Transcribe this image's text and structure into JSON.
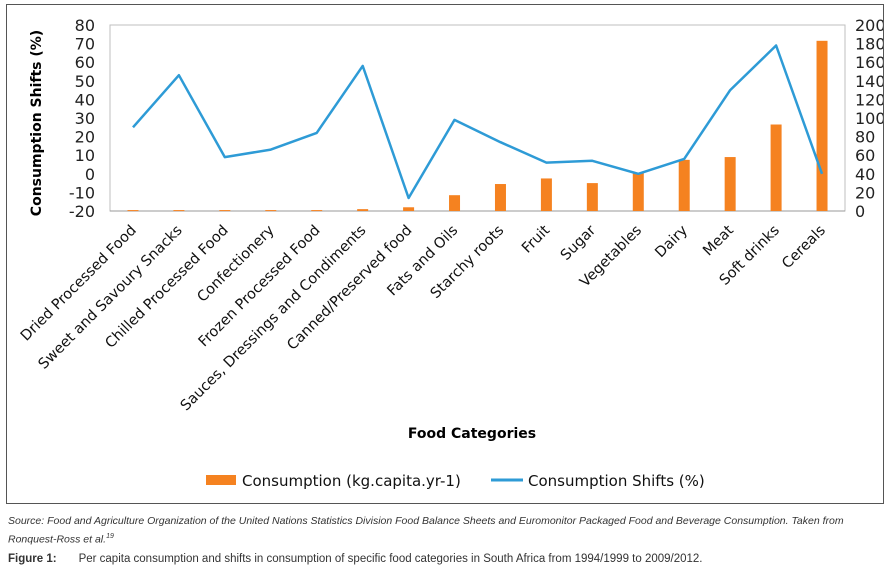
{
  "chart_data": {
    "type": "bar+line",
    "xlabel": "Food Categories",
    "ylabel_left": "Consumption Shifts (%)",
    "ylim_left": [
      -20,
      80
    ],
    "yticks_left": [
      "80",
      "70",
      "60",
      "50",
      "40",
      "30",
      "20",
      "10",
      "0",
      "-10",
      "-20"
    ],
    "ylim_right": [
      0,
      200
    ],
    "yticks_right": [
      "200",
      "180",
      "160",
      "140",
      "120",
      "100",
      "80",
      "60",
      "40",
      "20",
      "0"
    ],
    "categories": [
      "Dried Processed Food",
      "Sweet and Savoury Snacks",
      "Chilled Processed Food",
      "Confectionery",
      "Frozen Processed Food",
      "Sauces, Dressings and Condiments",
      "Canned/Preserved food",
      "Fats and Oils",
      "Starchy roots",
      "Fruit",
      "Sugar",
      "Vegetables",
      "Dairy",
      "Meat",
      "Soft drinks",
      "Cereals"
    ],
    "series": [
      {
        "name": "Consumption (kg.capita.yr-1)",
        "type": "bar",
        "axis": "right",
        "color": "#f58220",
        "values": [
          1,
          1,
          1,
          1,
          1,
          2,
          4,
          17,
          29,
          35,
          30,
          41,
          55,
          58,
          93,
          183
        ]
      },
      {
        "name": "Consumption Shifts (%)",
        "type": "line",
        "axis": "left",
        "color": "#2e9bd6",
        "values": [
          25,
          53,
          9,
          13,
          22,
          58,
          -13,
          29,
          17,
          6,
          7,
          0,
          8,
          45,
          69,
          0
        ]
      }
    ],
    "legend": [
      "Consumption (kg.capita.yr-1)",
      "Consumption Shifts (%)"
    ],
    "legend_position": "bottom"
  },
  "source_note": "Source: Food and Agriculture Organization of the United Nations Statistics Division Food Balance Sheets and Euromonitor Packaged Food and Beverage Consumption. Taken from Ronquest-Ross et al.",
  "source_ref": "19",
  "figure_label": "Figure 1:",
  "figure_caption": "Per capita consumption and shifts in consumption of specific food categories in South Africa from 1994/1999 to 2009/2012."
}
